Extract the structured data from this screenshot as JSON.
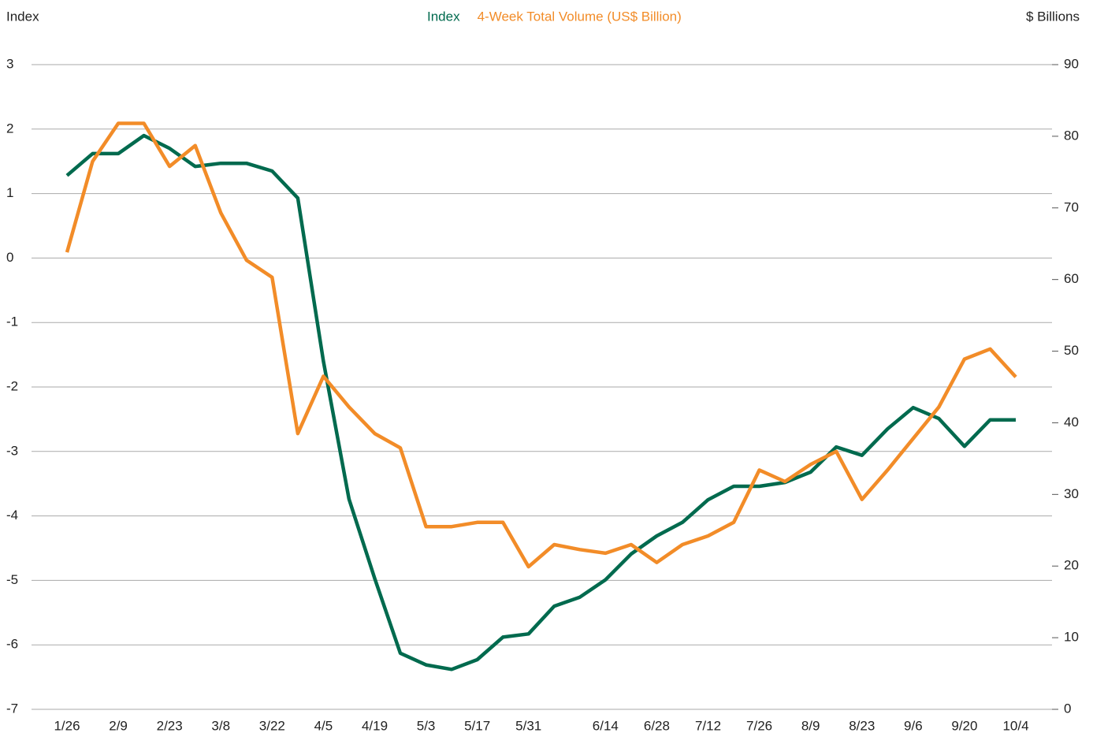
{
  "chart_data": {
    "type": "line",
    "y_label": "Index",
    "y2_label": "$ Billions",
    "categories": [
      "1/26",
      null,
      "2/9",
      null,
      "2/23",
      null,
      "3/8",
      null,
      "3/22",
      null,
      "4/5",
      null,
      "4/19",
      null,
      "5/3",
      null,
      "5/17",
      null,
      "5/31",
      null,
      null,
      "6/14",
      null,
      "6/28",
      null,
      "7/12",
      null,
      "7/26",
      null,
      "8/9",
      null,
      "8/23",
      null,
      "9/6",
      null,
      "9/20",
      null,
      "10/4"
    ],
    "series": [
      {
        "name": "Index",
        "color": "#006a4e",
        "values": [
          1.28,
          1.62,
          1.62,
          1.9,
          1.7,
          1.42,
          1.47,
          1.47,
          1.35,
          0.93,
          -1.6,
          -3.74,
          -4.97,
          -6.13,
          -6.31,
          -6.38,
          -6.23,
          -5.88,
          -5.83,
          -5.4,
          -5.26,
          -4.99,
          -4.59,
          -4.31,
          -4.1,
          -3.75,
          -3.54,
          -3.54,
          -3.48,
          -3.32,
          -2.93,
          -3.06,
          -2.65,
          -2.32,
          -2.49,
          -2.92,
          -2.51,
          -2.51
        ]
      },
      {
        "name": "4-Week Total Volume (US$ Billion)",
        "color": "#f28c28",
        "axis": "y2",
        "values": [
          63.8,
          76.5,
          81.8,
          81.8,
          75.8,
          78.7,
          69.3,
          62.7,
          60.3,
          38.5,
          46.5,
          42.2,
          38.5,
          36.5,
          25.5,
          25.5,
          26.1,
          26.1,
          19.9,
          23.0,
          22.3,
          21.8,
          23.0,
          20.5,
          23.0,
          24.2,
          26.1,
          33.4,
          31.8,
          34.2,
          36.0,
          29.3,
          33.4,
          37.8,
          42.2,
          48.9,
          50.3,
          46.4
        ]
      }
    ],
    "ylim": [
      -7,
      3
    ],
    "yticks": [
      -7,
      -6,
      -5,
      -4,
      -3,
      -2,
      -1,
      0,
      1,
      2,
      3
    ],
    "y2lim": [
      0,
      90
    ],
    "y2ticks": [
      0,
      10,
      20,
      30,
      40,
      50,
      60,
      70,
      80,
      90
    ],
    "grid": true,
    "legend": "top"
  }
}
